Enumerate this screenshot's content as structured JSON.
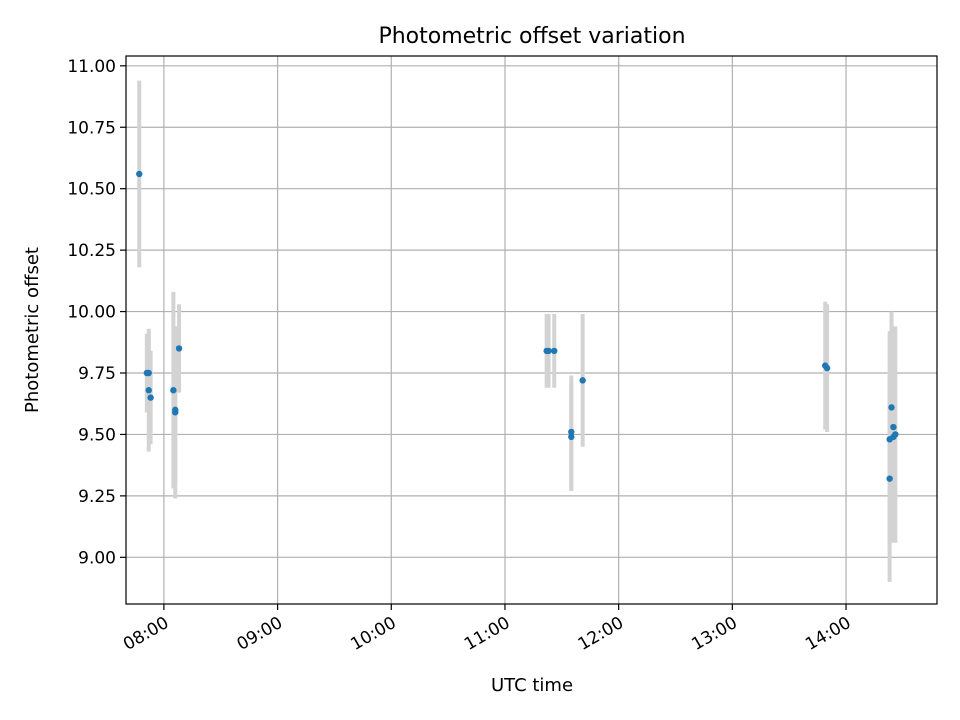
{
  "chart_data": {
    "type": "scatter",
    "title": "Photometric offset variation",
    "xlabel": "UTC time",
    "ylabel": "Photometric offset",
    "x_unit": "UTC time (HH:MM)",
    "xlim": [
      "07:40",
      "14:48"
    ],
    "ylim": [
      8.81,
      11.04
    ],
    "x_ticks": [
      "08:00",
      "09:00",
      "10:00",
      "11:00",
      "12:00",
      "13:00",
      "14:00"
    ],
    "y_ticks": [
      "9.00",
      "9.25",
      "9.50",
      "9.75",
      "10.00",
      "10.25",
      "10.50",
      "10.75",
      "11.00"
    ],
    "grid": true,
    "x_tick_rotation": "30 degrees",
    "colors": {
      "points": "#1f77b4",
      "errorbars": "#d3d3d3",
      "grid": "#b0b0b0"
    },
    "points": [
      {
        "x": "07:47",
        "y": 10.56,
        "yerr": 0.38
      },
      {
        "x": "07:51",
        "y": 9.75,
        "yerr": 0.16
      },
      {
        "x": "07:52",
        "y": 9.75,
        "yerr": 0.16
      },
      {
        "x": "07:52",
        "y": 9.68,
        "yerr": 0.25
      },
      {
        "x": "07:53",
        "y": 9.65,
        "yerr": 0.19
      },
      {
        "x": "08:05",
        "y": 9.68,
        "yerr": 0.4
      },
      {
        "x": "08:06",
        "y": 9.59,
        "yerr": 0.35
      },
      {
        "x": "08:06",
        "y": 9.6,
        "yerr": 0.3
      },
      {
        "x": "08:08",
        "y": 9.85,
        "yerr": 0.18
      },
      {
        "x": "11:22",
        "y": 9.84,
        "yerr": 0.15
      },
      {
        "x": "11:23",
        "y": 9.84,
        "yerr": 0.15
      },
      {
        "x": "11:26",
        "y": 9.84,
        "yerr": 0.15
      },
      {
        "x": "11:35",
        "y": 9.51,
        "yerr": 0.23
      },
      {
        "x": "11:35",
        "y": 9.49,
        "yerr": 0.22
      },
      {
        "x": "11:41",
        "y": 9.72,
        "yerr": 0.27
      },
      {
        "x": "13:49",
        "y": 9.78,
        "yerr": 0.26
      },
      {
        "x": "13:50",
        "y": 9.77,
        "yerr": 0.26
      },
      {
        "x": "14:23",
        "y": 9.32,
        "yerr": 0.42
      },
      {
        "x": "14:23",
        "y": 9.48,
        "yerr": 0.44
      },
      {
        "x": "14:24",
        "y": 9.61,
        "yerr": 0.39
      },
      {
        "x": "14:25",
        "y": 9.53,
        "yerr": 0.4
      },
      {
        "x": "14:25",
        "y": 9.49,
        "yerr": 0.43
      },
      {
        "x": "14:26",
        "y": 9.5,
        "yerr": 0.44
      }
    ]
  }
}
